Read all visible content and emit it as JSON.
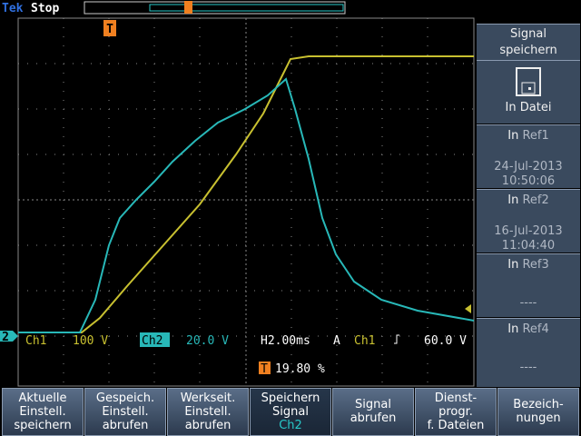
{
  "header": {
    "logo": "Tek",
    "status": "Stop"
  },
  "markers": {
    "trigger": "T",
    "ch2": "2"
  },
  "side_menu": {
    "title": [
      "Signal",
      "speichern"
    ],
    "items": [
      {
        "label": "In Datei"
      },
      {
        "prefix": "In",
        "label": "Ref1",
        "date": "24-Jul-2013",
        "time": "10:50:06"
      },
      {
        "prefix": "In",
        "label": "Ref2",
        "date": "16-Jul-2013",
        "time": "11:04:40"
      },
      {
        "prefix": "In",
        "label": "Ref3",
        "empty": "----"
      },
      {
        "prefix": "In",
        "label": "Ref4",
        "empty": "----"
      }
    ]
  },
  "readout": {
    "ch1": "Ch1",
    "ch1_scale": "100 V",
    "ch2": "Ch2",
    "ch2_scale": "20.0 V",
    "horizontal": "H2.00ms",
    "trigger_mode": "A",
    "trigger_source": "Ch1",
    "trigger_level": "60.0 V",
    "trigger_position": "19.80 %"
  },
  "bottom_menu": [
    [
      "Aktuelle",
      "Einstell.",
      "speichern"
    ],
    [
      "Gespeich.",
      "Einstell.",
      "abrufen"
    ],
    [
      "Werkseit.",
      "Einstell.",
      "abrufen"
    ],
    [
      "Speichern",
      "Signal",
      "Ch2"
    ],
    [
      "Signal",
      "abrufen"
    ],
    [
      "Dienst-",
      "progr.",
      "f. Dateien"
    ],
    [
      "Bezeich-",
      "nungen"
    ]
  ]
}
